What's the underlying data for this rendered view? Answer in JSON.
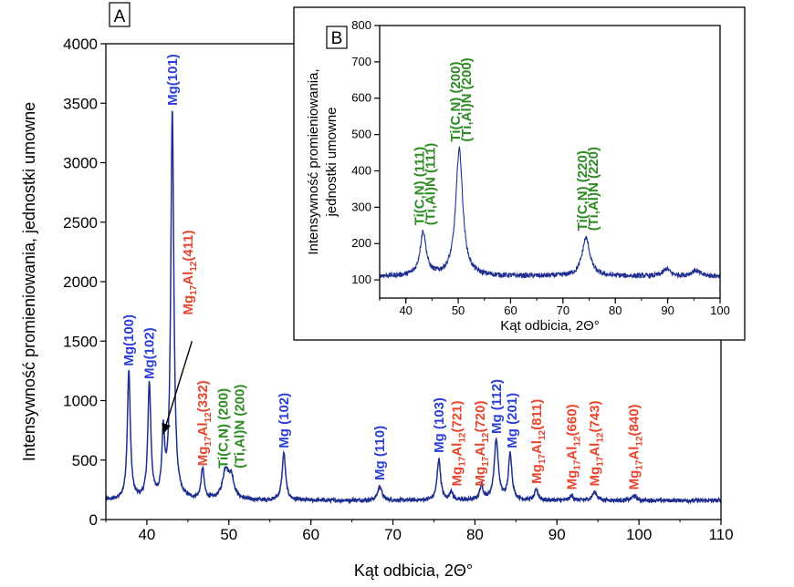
{
  "chart_data": [
    {
      "panel": "A",
      "type": "line",
      "xlabel": "Kąt odbicia, 2Θ°",
      "ylabel": "Intensywność promieniowania, jednostki umowne",
      "xlim": [
        35,
        110
      ],
      "ylim": [
        0,
        4000
      ],
      "xticks": [
        40,
        50,
        60,
        70,
        80,
        90,
        100,
        110
      ],
      "yticks": [
        0,
        500,
        1000,
        1500,
        2000,
        2500,
        3000,
        3500,
        4000
      ],
      "grid": false,
      "line_color": "#1f2f8f",
      "baseline": 160,
      "peaks": [
        {
          "x": 37.8,
          "y": 1240,
          "w": 0.22
        },
        {
          "x": 40.3,
          "y": 1130,
          "w": 0.22
        },
        {
          "x": 42.0,
          "y": 680,
          "w": 0.2
        },
        {
          "x": 43.1,
          "y": 3430,
          "w": 0.22
        },
        {
          "x": 46.8,
          "y": 420,
          "w": 0.22
        },
        {
          "x": 49.6,
          "y": 400,
          "w": 0.45
        },
        {
          "x": 50.3,
          "y": 330,
          "w": 0.4
        },
        {
          "x": 56.7,
          "y": 560,
          "w": 0.25
        },
        {
          "x": 68.4,
          "y": 280,
          "w": 0.3
        },
        {
          "x": 75.6,
          "y": 510,
          "w": 0.25
        },
        {
          "x": 77.1,
          "y": 240,
          "w": 0.2
        },
        {
          "x": 80.8,
          "y": 280,
          "w": 0.25
        },
        {
          "x": 82.6,
          "y": 670,
          "w": 0.3
        },
        {
          "x": 84.3,
          "y": 550,
          "w": 0.25
        },
        {
          "x": 87.5,
          "y": 250,
          "w": 0.25
        },
        {
          "x": 91.8,
          "y": 200,
          "w": 0.25
        },
        {
          "x": 94.6,
          "y": 230,
          "w": 0.35
        },
        {
          "x": 99.4,
          "y": 200,
          "w": 0.3
        }
      ],
      "labels": [
        {
          "text": "Mg(100)",
          "sub": null,
          "x": 37.8,
          "y": 1290,
          "color": "#2b3fd6"
        },
        {
          "text": "Mg(102)",
          "sub": null,
          "x": 40.3,
          "y": 1180,
          "color": "#2b3fd6"
        },
        {
          "text": "Mg(101)",
          "sub": null,
          "x": 43.1,
          "y": 3480,
          "color": "#2b3fd6"
        },
        {
          "text": "Mg17Al12(411)",
          "sub": [
            "Mg",
            "17",
            "Al",
            "12",
            "(411)"
          ],
          "x": 45.0,
          "y": 1720,
          "color": "#e8452c"
        },
        {
          "text": "Mg17Al12(332)",
          "sub": [
            "Mg",
            "17",
            "Al",
            "12",
            "(332)"
          ],
          "x": 46.8,
          "y": 450,
          "color": "#e8452c"
        },
        {
          "text": "Ti(C,N) (200)",
          "sub": null,
          "x": 49.3,
          "y": 430,
          "color": "#2e8b23"
        },
        {
          "text": "(Ti,Al)N (200)",
          "sub": null,
          "x": 51.3,
          "y": 430,
          "color": "#2e8b23"
        },
        {
          "text": "Mg (102)",
          "sub": null,
          "x": 56.7,
          "y": 600,
          "color": "#2b3fd6"
        },
        {
          "text": "Mg (110)",
          "sub": null,
          "x": 68.4,
          "y": 330,
          "color": "#2b3fd6"
        },
        {
          "text": "Mg (103)",
          "sub": null,
          "x": 75.6,
          "y": 560,
          "color": "#2b3fd6"
        },
        {
          "text": "Mg17Al12(721)",
          "sub": [
            "Mg",
            "17",
            "Al",
            "12",
            "(721)"
          ],
          "x": 77.8,
          "y": 280,
          "color": "#e8452c"
        },
        {
          "text": "Mg17Al12(720)",
          "sub": [
            "Mg",
            "17",
            "Al",
            "12",
            "(720)"
          ],
          "x": 80.6,
          "y": 280,
          "color": "#e8452c"
        },
        {
          "text": "Mg (112)",
          "sub": null,
          "x": 82.6,
          "y": 720,
          "color": "#2b3fd6"
        },
        {
          "text": "Mg (201)",
          "sub": null,
          "x": 84.5,
          "y": 600,
          "color": "#2b3fd6"
        },
        {
          "text": "Mg17Al12(811)",
          "sub": [
            "Mg",
            "17",
            "Al",
            "12",
            "(811)"
          ],
          "x": 87.5,
          "y": 300,
          "color": "#e8452c"
        },
        {
          "text": "Mg17Al12(660)",
          "sub": [
            "Mg",
            "17",
            "Al",
            "12",
            "(660)"
          ],
          "x": 91.8,
          "y": 250,
          "color": "#e8452c"
        },
        {
          "text": "Mg17Al12(743)",
          "sub": [
            "Mg",
            "17",
            "Al",
            "12",
            "(743)"
          ],
          "x": 94.6,
          "y": 280,
          "color": "#e8452c"
        },
        {
          "text": "Mg17Al12(840)",
          "sub": [
            "Mg",
            "17",
            "Al",
            "12",
            "(840)"
          ],
          "x": 99.4,
          "y": 250,
          "color": "#e8452c"
        }
      ],
      "arrow": {
        "from": [
          45.5,
          1500
        ],
        "to": [
          42.0,
          720
        ]
      }
    },
    {
      "panel": "B",
      "type": "line",
      "xlabel": "Kąt odbicia, 2Θ°",
      "ylabel_lines": [
        "Intensywność promieniowania,",
        "jednostki umowne"
      ],
      "xlim": [
        35,
        100
      ],
      "ylim": [
        50,
        800
      ],
      "xticks": [
        40,
        50,
        60,
        70,
        80,
        90,
        100
      ],
      "yticks": [
        100,
        200,
        300,
        400,
        500,
        600,
        700,
        800
      ],
      "grid": false,
      "line_color": "#1f2f8f",
      "baseline": 110,
      "peaks": [
        {
          "x": 43.3,
          "y": 230,
          "w": 0.7
        },
        {
          "x": 50.2,
          "y": 460,
          "w": 0.8
        },
        {
          "x": 74.4,
          "y": 215,
          "w": 0.9
        },
        {
          "x": 89.8,
          "y": 130,
          "w": 0.8
        },
        {
          "x": 95.3,
          "y": 125,
          "w": 1.0
        }
      ],
      "labels": [
        {
          "text": "Ti(C,N) (111)",
          "x": 42.6,
          "y": 250,
          "color": "#2e8b23"
        },
        {
          "text": "(Ti,Al)N (111)",
          "x": 44.7,
          "y": 250,
          "color": "#2e8b23"
        },
        {
          "text": "Ti(C,N) (200)",
          "x": 49.5,
          "y": 480,
          "color": "#2e8b23"
        },
        {
          "text": "(Ti,Al)N (200)",
          "x": 51.6,
          "y": 480,
          "color": "#2e8b23"
        },
        {
          "text": "Ti(C,N) (220)",
          "x": 73.7,
          "y": 235,
          "color": "#2e8b23"
        },
        {
          "text": "(Ti,Al)N (220)",
          "x": 75.8,
          "y": 235,
          "color": "#2e8b23"
        }
      ]
    }
  ]
}
